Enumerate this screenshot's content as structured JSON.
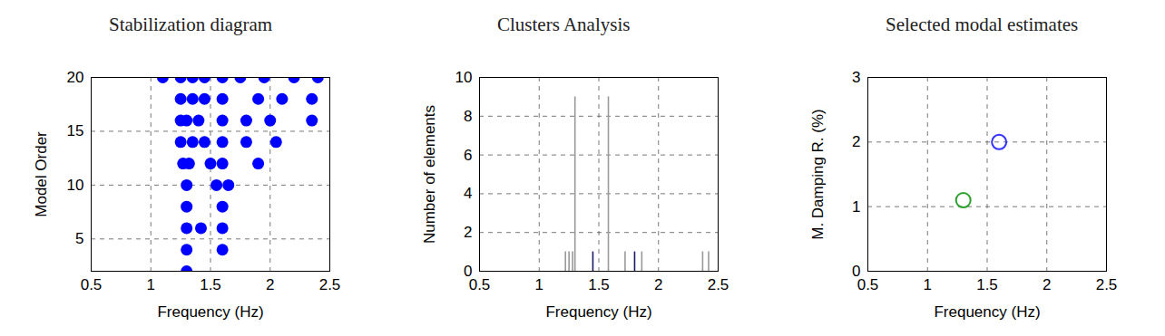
{
  "chart_data": [
    {
      "type": "scatter",
      "title": "Stabilization diagram",
      "x_label": "Frequency (Hz)",
      "y_label": "Model Order",
      "x": [
        1.3,
        1.3,
        1.6,
        1.3,
        1.42,
        1.6,
        1.3,
        1.6,
        1.3,
        1.55,
        1.65,
        1.27,
        1.32,
        1.5,
        1.6,
        1.9,
        1.25,
        1.35,
        1.45,
        1.6,
        1.8,
        2.05,
        1.25,
        1.3,
        1.4,
        1.6,
        1.8,
        2.0,
        2.35,
        1.25,
        1.35,
        1.45,
        1.6,
        1.9,
        2.1,
        2.35,
        1.1,
        1.25,
        1.35,
        1.45,
        1.6,
        1.75,
        1.95,
        2.2,
        2.4
      ],
      "values": [
        2,
        4,
        4,
        6,
        6,
        6,
        8,
        8,
        10,
        10,
        10,
        12,
        12,
        12,
        12,
        12,
        14,
        14,
        14,
        14,
        14,
        14,
        16,
        16,
        16,
        16,
        16,
        16,
        16,
        18,
        18,
        18,
        18,
        18,
        18,
        18,
        20,
        20,
        20,
        20,
        20,
        20,
        20,
        20,
        20
      ],
      "color": "#0000ff",
      "marker": "filled circle",
      "xlim": [
        0.5,
        2.5
      ],
      "xticks": [
        0.5,
        1,
        1.5,
        2,
        2.5
      ],
      "ylim": [
        2,
        20
      ],
      "yticks": [
        5,
        10,
        15,
        20
      ],
      "grid": true
    },
    {
      "type": "bar",
      "title": "Clusters Analysis",
      "x_label": "Frequency (Hz)",
      "y_label": "Number of elements",
      "x": [
        1.22,
        1.25,
        1.28,
        1.3,
        1.45,
        1.58,
        1.72,
        1.8,
        1.86,
        2.37,
        2.42
      ],
      "values": [
        1,
        1,
        1,
        9,
        1,
        9,
        1,
        1,
        1,
        1,
        1
      ],
      "colors": [
        "#999999",
        "#999999",
        "#999999",
        "#999999",
        "#1a1a66",
        "#999999",
        "#999999",
        "#1a1a66",
        "#999999",
        "#999999",
        "#999999"
      ],
      "xlim": [
        0.5,
        2.5
      ],
      "xticks": [
        0.5,
        1,
        1.5,
        2,
        2.5
      ],
      "ylim": [
        0,
        10
      ],
      "yticks": [
        0,
        2,
        4,
        6,
        8,
        10
      ],
      "grid": true
    },
    {
      "type": "scatter",
      "title": "Selected modal estimates",
      "x_label": "Frequency (Hz)",
      "y_label": "M. Damping R. (%)",
      "x": [
        1.3,
        1.6
      ],
      "values": [
        1.1,
        2.0
      ],
      "colors": [
        "#2ca02c",
        "#3333ff"
      ],
      "marker": "open circle",
      "xlim": [
        0.5,
        2.5
      ],
      "xticks": [
        0.5,
        1,
        1.5,
        2,
        2.5
      ],
      "ylim": [
        0,
        3
      ],
      "yticks": [
        0,
        1,
        2,
        3
      ],
      "grid": true
    }
  ]
}
